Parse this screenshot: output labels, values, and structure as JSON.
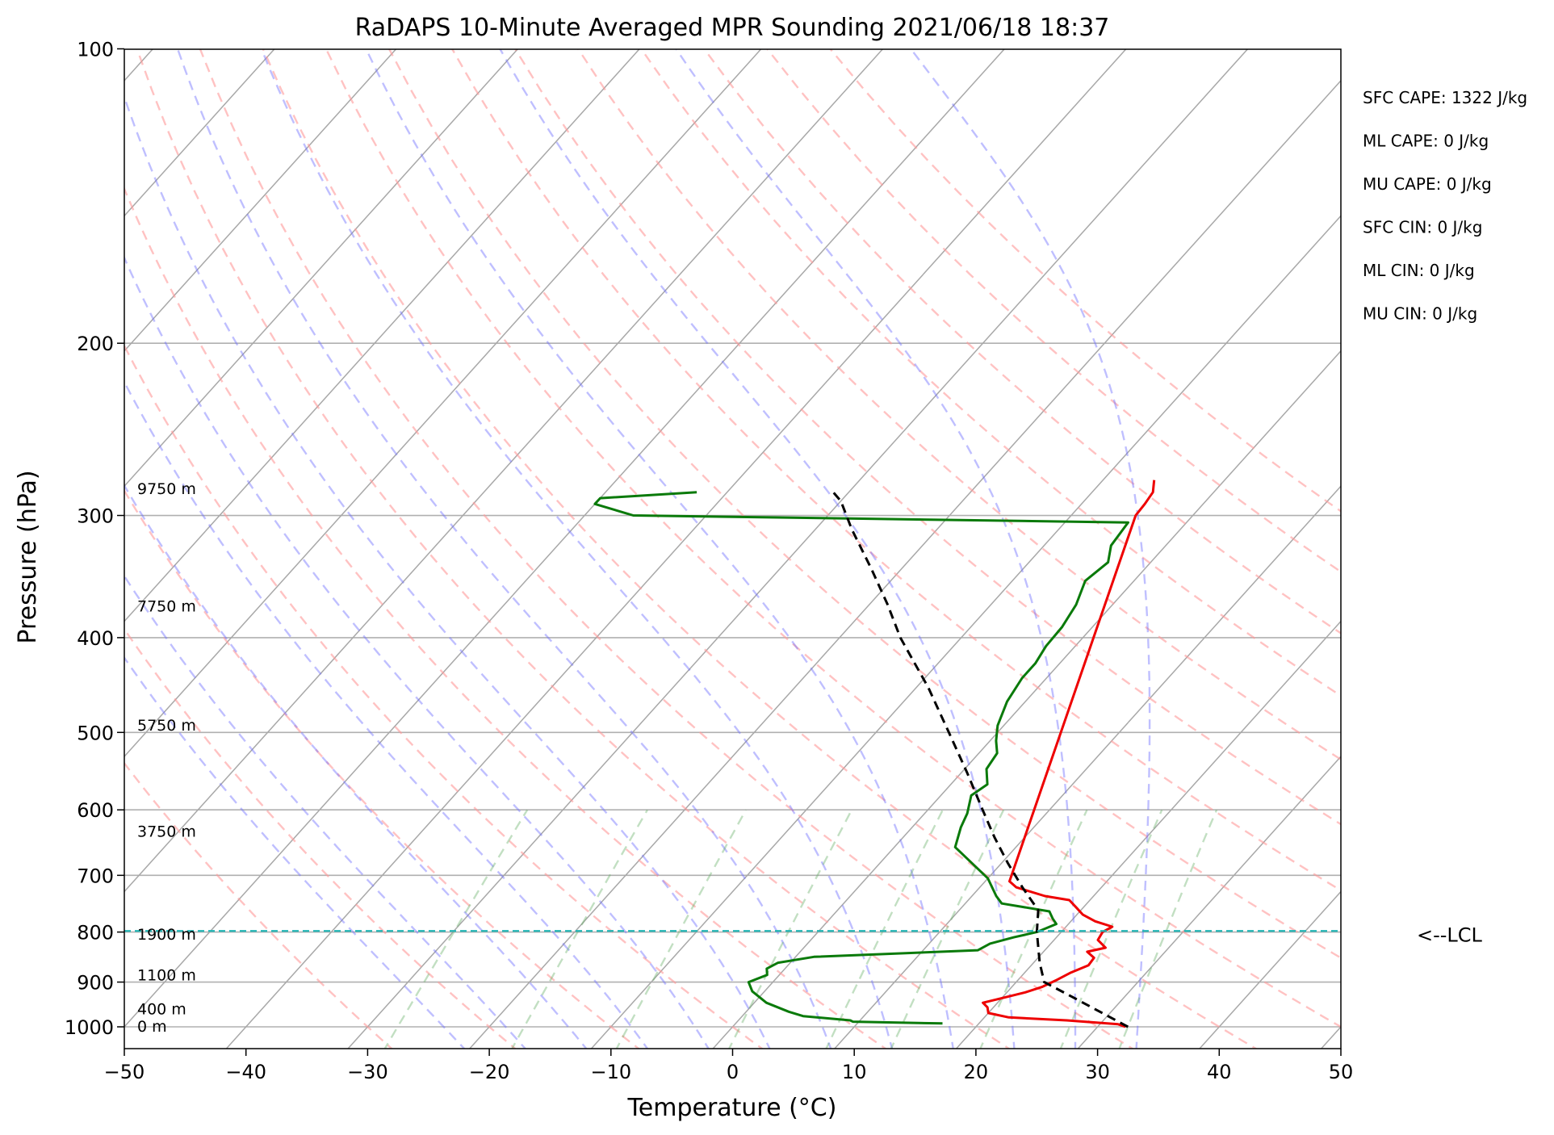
{
  "chart_data": {
    "type": "line",
    "chart_kind": "skew-T log-P sounding diagram",
    "title": "RaDAPS 10-Minute Averaged MPR Sounding 2021/06/18 18:37",
    "xlabel": "Temperature (°C)",
    "ylabel": "Pressure (hPa)",
    "xlim": [
      -50,
      50
    ],
    "ylim": [
      1050,
      100
    ],
    "y_scale": "log",
    "x_ticks": [
      -50,
      -40,
      -30,
      -20,
      -10,
      0,
      10,
      20,
      30,
      40,
      50
    ],
    "x_tick_labels": [
      "−50",
      "−40",
      "−30",
      "−20",
      "−10",
      "0",
      "10",
      "20",
      "30",
      "40",
      "50"
    ],
    "y_ticks": [
      1000,
      900,
      800,
      700,
      600,
      500,
      400,
      300,
      200,
      100
    ],
    "y_tick_labels": [
      "1000",
      "900",
      "800",
      "700",
      "600",
      "500",
      "400",
      "300",
      "200",
      "100"
    ],
    "grid": true,
    "isotherm_step": 10,
    "dry_adiabats_C": [
      -30,
      -20,
      -10,
      0,
      10,
      20,
      30,
      40,
      50,
      60,
      70,
      80,
      90,
      100,
      110,
      120,
      130
    ],
    "moist_adiabats_C": [
      -20,
      -15,
      -10,
      -5,
      0,
      5,
      10,
      15,
      20,
      25,
      30,
      35
    ],
    "mixing_ratios_gkg": [
      0.4,
      1,
      2,
      4,
      7,
      10,
      16,
      24,
      32
    ],
    "series": [
      {
        "key": "temperature",
        "color": "#ee0000",
        "points": [
          [
            1000,
            32.3
          ],
          [
            994,
            31.5
          ],
          [
            985,
            27
          ],
          [
            978,
            22
          ],
          [
            968,
            20
          ],
          [
            955,
            19.5
          ],
          [
            945,
            18.8
          ],
          [
            935,
            20
          ],
          [
            922,
            21.5
          ],
          [
            910,
            22.5
          ],
          [
            895,
            23.2
          ],
          [
            880,
            23.8
          ],
          [
            865,
            24.7
          ],
          [
            850,
            24.6
          ],
          [
            838,
            23.6
          ],
          [
            830,
            24.8
          ],
          [
            815,
            23.6
          ],
          [
            800,
            23.4
          ],
          [
            790,
            23.8
          ],
          [
            780,
            22
          ],
          [
            768,
            20.5
          ],
          [
            756,
            19.5
          ],
          [
            742,
            18.3
          ],
          [
            735,
            16
          ],
          [
            720,
            13
          ],
          [
            710,
            12
          ],
          [
            300,
            -4.7
          ],
          [
            292,
            -4.8
          ],
          [
            284,
            -5
          ],
          [
            276,
            -5.8
          ]
        ]
      },
      {
        "key": "dewpoint",
        "color": "#0a7a0a",
        "points": [
          [
            992,
            17
          ],
          [
            988,
            9.5
          ],
          [
            985,
            9.2
          ],
          [
            975,
            5
          ],
          [
            965,
            3.5
          ],
          [
            945,
            1
          ],
          [
            920,
            -1
          ],
          [
            900,
            -2
          ],
          [
            885,
            -1
          ],
          [
            872,
            -1.5
          ],
          [
            860,
            -1
          ],
          [
            848,
            1.5
          ],
          [
            835,
            14.5
          ],
          [
            822,
            15
          ],
          [
            810,
            16.5
          ],
          [
            800,
            18
          ],
          [
            785,
            19
          ],
          [
            775,
            18.3
          ],
          [
            762,
            17.5
          ],
          [
            748,
            13
          ],
          [
            735,
            12
          ],
          [
            705,
            10
          ],
          [
            655,
            5
          ],
          [
            625,
            4
          ],
          [
            605,
            3.5
          ],
          [
            580,
            2.5
          ],
          [
            565,
            3
          ],
          [
            545,
            1.8
          ],
          [
            525,
            1.5
          ],
          [
            510,
            0.5
          ],
          [
            492,
            -0.5
          ],
          [
            465,
            -1.5
          ],
          [
            440,
            -2
          ],
          [
            425,
            -2
          ],
          [
            408,
            -2.4
          ],
          [
            390,
            -2.5
          ],
          [
            370,
            -3
          ],
          [
            350,
            -4
          ],
          [
            335,
            -3.5
          ],
          [
            322,
            -4.5
          ],
          [
            305,
            -4.8
          ],
          [
            300,
            -46
          ],
          [
            292,
            -50
          ],
          [
            288,
            -50
          ],
          [
            284,
            -42.5
          ]
        ]
      },
      {
        "key": "parcel",
        "color": "#000000",
        "dashed": true,
        "points": [
          [
            1000,
            32.5
          ],
          [
            930,
            25.5
          ],
          [
            900,
            22.3
          ],
          [
            860,
            20.5
          ],
          [
            800,
            18
          ],
          [
            760,
            16.5
          ],
          [
            720,
            13.5
          ],
          [
            680,
            10.5
          ],
          [
            640,
            7.5
          ],
          [
            600,
            4.5
          ],
          [
            550,
            0.5
          ],
          [
            500,
            -4
          ],
          [
            450,
            -9
          ],
          [
            400,
            -15
          ],
          [
            370,
            -18.5
          ],
          [
            340,
            -22.5
          ],
          [
            310,
            -27
          ],
          [
            290,
            -30
          ],
          [
            283,
            -31.5
          ]
        ]
      }
    ],
    "lcl": {
      "pressure": 798,
      "label": "<--LCL",
      "color": "#20b5b5"
    },
    "height_labels": [
      {
        "text": "0 m",
        "pressure": 1000
      },
      {
        "text": "400 m",
        "pressure": 960
      },
      {
        "text": "1100 m",
        "pressure": 886
      },
      {
        "text": "1900 m",
        "pressure": 805
      },
      {
        "text": "3750 m",
        "pressure": 632
      },
      {
        "text": "5750 m",
        "pressure": 492
      },
      {
        "text": "7750 m",
        "pressure": 372
      },
      {
        "text": "9750 m",
        "pressure": 282
      }
    ],
    "stats": [
      "SFC CAPE: 1322 J/kg",
      "ML CAPE: 0 J/kg",
      "MU CAPE: 0 J/kg",
      "SFC CIN: 0 J/kg",
      "ML CIN: 0 J/kg",
      "MU CIN: 0 J/kg"
    ]
  }
}
